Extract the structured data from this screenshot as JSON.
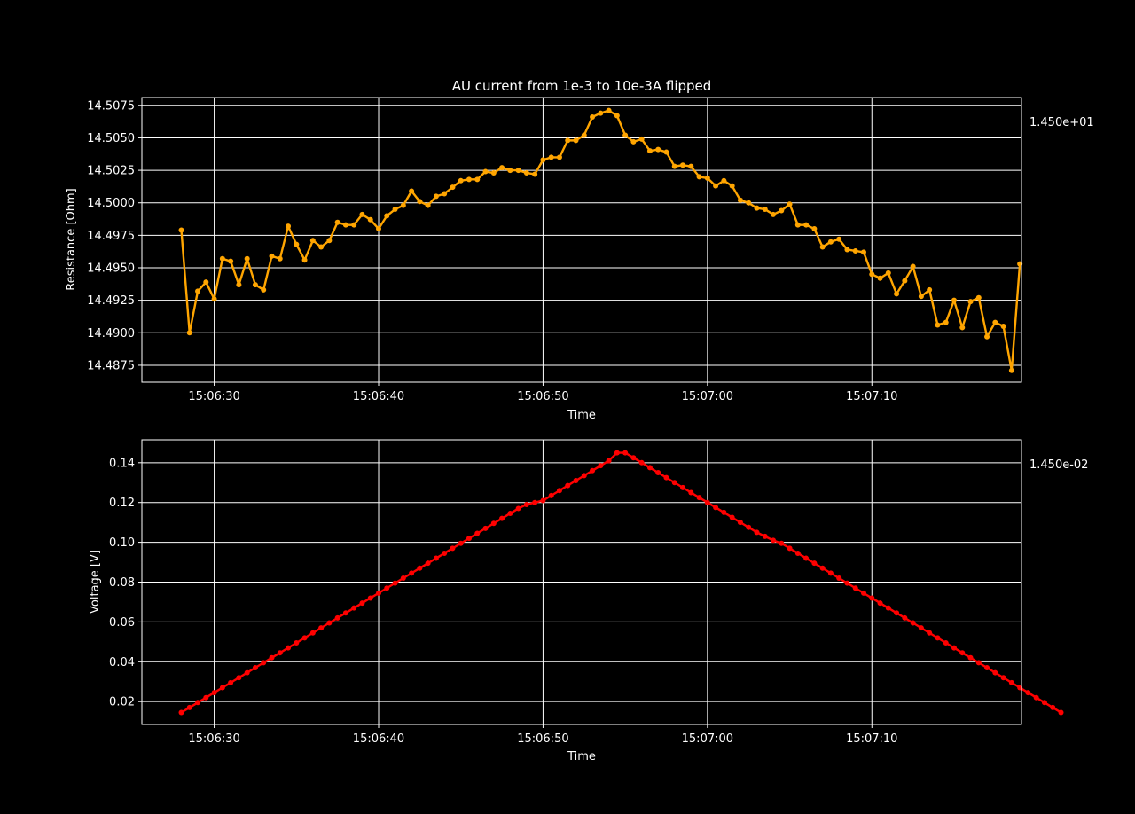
{
  "chart_data": [
    {
      "type": "line",
      "title": "AU current from 1e-3 to 10e-3A flipped",
      "xlabel": "Time",
      "ylabel": "Resistance [Ohm]",
      "offset_label": "1.450e+01",
      "color": "#ffa500",
      "grid": true,
      "x_start": "15:06:28",
      "x_step_seconds": 0.5,
      "xlim": [
        "15:06:25.6",
        "15:07:19.1"
      ],
      "ylim": [
        14.4862,
        14.5081
      ],
      "x_ticks": [
        "15:06:30",
        "15:06:40",
        "15:06:50",
        "15:07:00",
        "15:07:10"
      ],
      "y_ticks": [
        "14.4875",
        "14.4900",
        "14.4925",
        "14.4950",
        "14.4975",
        "14.5000",
        "14.5025",
        "14.5050",
        "14.5075"
      ],
      "series": [
        {
          "values": [
            14.4979,
            14.49,
            14.4932,
            14.4939,
            14.4926,
            14.4957,
            14.4955,
            14.4937,
            14.4957,
            14.4937,
            14.4933,
            14.4959,
            14.4957,
            14.4982,
            14.4968,
            14.4956,
            14.4971,
            14.4966,
            14.4971,
            14.4985,
            14.4983,
            14.4983,
            14.4991,
            14.4987,
            14.498,
            14.499,
            14.4995,
            14.4998,
            14.5009,
            14.5001,
            14.4998,
            14.5005,
            14.5007,
            14.5012,
            14.5017,
            14.5018,
            14.5018,
            14.5024,
            14.5023,
            14.5027,
            14.5025,
            14.5025,
            14.5023,
            14.5022,
            14.5033,
            14.5035,
            14.5035,
            14.5048,
            14.5048,
            14.5052,
            14.5066,
            14.5069,
            14.5071,
            14.5067,
            14.5052,
            14.5047,
            14.5049,
            14.504,
            14.5041,
            14.5039,
            14.5028,
            14.5029,
            14.5028,
            14.502,
            14.5019,
            14.5013,
            14.5017,
            14.5013,
            14.5002,
            14.5,
            14.4996,
            14.4995,
            14.4991,
            14.4994,
            14.4999,
            14.4983,
            14.4983,
            14.498,
            14.4966,
            14.497,
            14.4972,
            14.4964,
            14.4963,
            14.4962,
            14.4945,
            14.4942,
            14.4946,
            14.493,
            14.494,
            14.4951,
            14.4928,
            14.4933,
            14.4906,
            14.4908,
            14.4925,
            14.4904,
            14.4924,
            14.4927,
            14.4897,
            14.4908,
            14.4905,
            14.4871,
            14.4953
          ]
        }
      ]
    },
    {
      "type": "line",
      "xlabel": "Time",
      "ylabel": "Voltage [V]",
      "offset_label": "1.450e-02",
      "color": "#ff0000",
      "grid": true,
      "x_start": "15:06:28",
      "x_step_seconds": 0.5,
      "xlim": [
        "15:06:25.6",
        "15:07:19.1"
      ],
      "ylim": [
        0.0085,
        0.1515
      ],
      "x_ticks": [
        "15:06:30",
        "15:06:40",
        "15:06:50",
        "15:07:00",
        "15:07:10"
      ],
      "y_ticks": [
        "0.02",
        "0.04",
        "0.06",
        "0.08",
        "0.10",
        "0.12",
        "0.14"
      ],
      "series": [
        {
          "values": [
            0.0145,
            0.017,
            0.0195,
            0.022,
            0.0245,
            0.027,
            0.0295,
            0.032,
            0.0345,
            0.037,
            0.0395,
            0.042,
            0.0445,
            0.047,
            0.0495,
            0.052,
            0.0545,
            0.057,
            0.0595,
            0.062,
            0.0645,
            0.067,
            0.0695,
            0.072,
            0.0745,
            0.077,
            0.0795,
            0.082,
            0.0845,
            0.087,
            0.0895,
            0.092,
            0.0945,
            0.097,
            0.0995,
            0.102,
            0.1045,
            0.107,
            0.1095,
            0.112,
            0.1145,
            0.117,
            0.119,
            0.12,
            0.121,
            0.1235,
            0.126,
            0.1285,
            0.131,
            0.1335,
            0.136,
            0.1385,
            0.141,
            0.145,
            0.145,
            0.1425,
            0.14,
            0.1375,
            0.135,
            0.1325,
            0.13,
            0.1275,
            0.125,
            0.1225,
            0.12,
            0.1175,
            0.115,
            0.1125,
            0.11,
            0.1075,
            0.105,
            0.103,
            0.101,
            0.0995,
            0.097,
            0.0945,
            0.092,
            0.0895,
            0.087,
            0.0845,
            0.082,
            0.0795,
            0.077,
            0.0745,
            0.072,
            0.0695,
            0.067,
            0.0645,
            0.062,
            0.0595,
            0.057,
            0.0545,
            0.052,
            0.0495,
            0.047,
            0.0445,
            0.042,
            0.0395,
            0.037,
            0.0345,
            0.032,
            0.0295,
            0.027,
            0.0245,
            0.022,
            0.0195,
            0.017,
            0.0145
          ]
        }
      ]
    }
  ]
}
